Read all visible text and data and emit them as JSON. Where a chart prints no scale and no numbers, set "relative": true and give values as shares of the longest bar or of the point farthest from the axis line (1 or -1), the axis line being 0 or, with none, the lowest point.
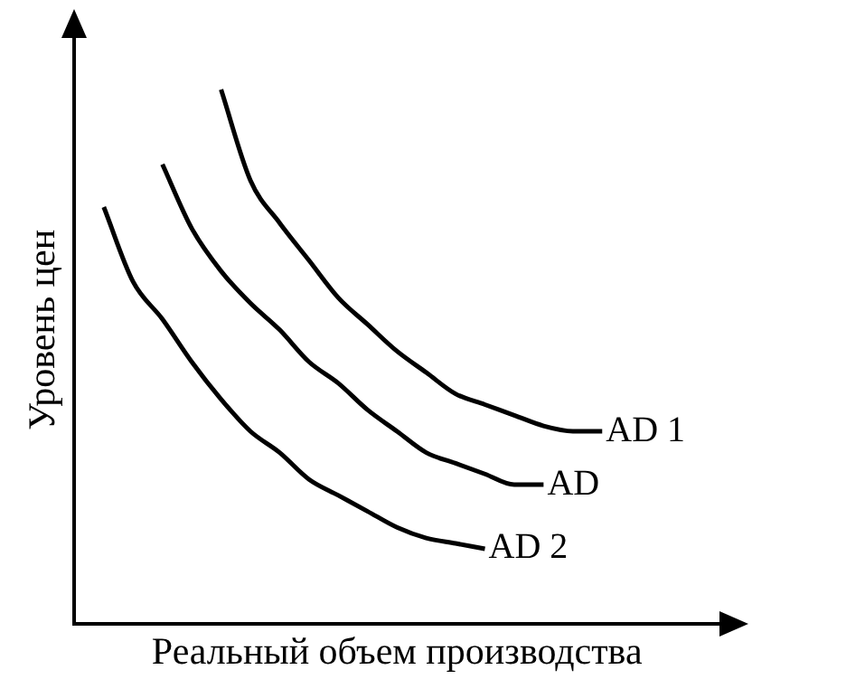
{
  "chart_data": {
    "type": "line",
    "relative": true,
    "xlabel": "Реальный объем производства",
    "ylabel": "Уровень цен",
    "legend": false,
    "grid": false,
    "marker": "none",
    "line_style": "solid",
    "categories": [
      null,
      null,
      null,
      null,
      null,
      null,
      null,
      null,
      null,
      null,
      null,
      null,
      null,
      null,
      null,
      null,
      null,
      null,
      null,
      null,
      null,
      null,
      null
    ],
    "series": [
      {
        "name": "AD 1",
        "color": "#000000",
        "values": [
          null,
          null,
          null,
          null,
          null,
          1,
          0.83,
          0.75,
          0.68,
          0.61,
          0.56,
          0.51,
          0.47,
          0.43,
          0.41,
          0.39,
          0.37,
          0.36,
          0.36,
          null,
          null,
          null,
          null
        ]
      },
      {
        "name": "AD",
        "color": "#000000",
        "values": [
          null,
          null,
          null,
          0.86,
          0.74,
          0.66,
          0.6,
          0.55,
          0.49,
          0.45,
          0.4,
          0.36,
          0.32,
          0.3,
          0.28,
          0.26,
          0.26,
          null,
          null,
          null,
          null,
          null,
          null
        ]
      },
      {
        "name": "AD 2",
        "color": "#000000",
        "values": [
          null,
          0.78,
          0.64,
          0.57,
          0.49,
          0.42,
          0.36,
          0.32,
          0.27,
          0.24,
          0.21,
          0.18,
          0.16,
          0.15,
          0.14,
          null,
          null,
          null,
          null,
          null,
          null,
          null,
          null
        ]
      }
    ]
  }
}
